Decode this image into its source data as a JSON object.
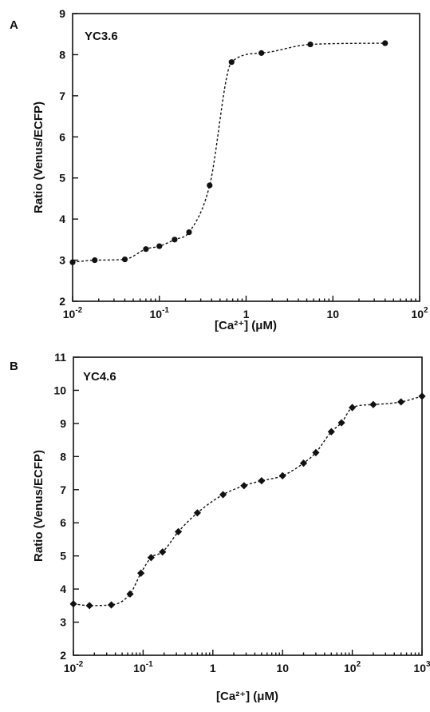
{
  "chart_data": [
    {
      "type": "line",
      "panel_label": "A",
      "title": "YC3.6",
      "xlabel": "[Ca²⁺] (μM)",
      "ylabel": "Ratio (Venus/ECFP)",
      "xscale": "log",
      "xlim": [
        0.01,
        100
      ],
      "ylim": [
        2,
        9
      ],
      "x_ticks": [
        {
          "value": 0.01,
          "base": "10",
          "exp": "-2"
        },
        {
          "value": 0.1,
          "base": "10",
          "exp": "-1"
        },
        {
          "value": 1,
          "base": "1",
          "exp": ""
        },
        {
          "value": 10,
          "base": "10",
          "exp": ""
        },
        {
          "value": 100,
          "base": "10",
          "exp": "2"
        }
      ],
      "y_ticks": [
        2,
        3,
        4,
        5,
        6,
        7,
        8,
        9
      ],
      "marker": "circle",
      "grid": false,
      "series": [
        {
          "x": [
            0.01,
            0.018,
            0.04,
            0.07,
            0.1,
            0.15,
            0.22,
            0.38,
            0.68,
            1.5,
            5.5,
            40
          ],
          "y": [
            2.95,
            3.0,
            3.02,
            3.27,
            3.34,
            3.5,
            3.68,
            4.82,
            7.82,
            8.04,
            8.25,
            8.28
          ]
        }
      ]
    },
    {
      "type": "line",
      "panel_label": "B",
      "title": "YC4.6",
      "xlabel": "[Ca²⁺] (μM)",
      "ylabel": "Ratio (Venus/ECFP)",
      "xscale": "log",
      "xlim": [
        0.01,
        1000
      ],
      "ylim": [
        2,
        11
      ],
      "x_ticks": [
        {
          "value": 0.01,
          "base": "10",
          "exp": "-2"
        },
        {
          "value": 0.1,
          "base": "10",
          "exp": "-1"
        },
        {
          "value": 1,
          "base": "1",
          "exp": ""
        },
        {
          "value": 10,
          "base": "10",
          "exp": ""
        },
        {
          "value": 100,
          "base": "10",
          "exp": "2"
        },
        {
          "value": 1000,
          "base": "10",
          "exp": "3"
        }
      ],
      "y_ticks": [
        2,
        3,
        4,
        5,
        6,
        7,
        8,
        9,
        10,
        11
      ],
      "marker": "diamond",
      "grid": false,
      "series": [
        {
          "x": [
            0.01,
            0.017,
            0.035,
            0.065,
            0.093,
            0.13,
            0.19,
            0.32,
            0.6,
            1.4,
            2.8,
            5,
            10,
            20,
            30,
            50,
            70,
            100,
            200,
            500,
            1000
          ],
          "y": [
            3.55,
            3.5,
            3.52,
            3.85,
            4.48,
            4.95,
            5.12,
            5.73,
            6.3,
            6.85,
            7.12,
            7.27,
            7.42,
            7.8,
            8.12,
            8.75,
            9.02,
            9.48,
            9.57,
            9.65,
            9.82
          ]
        }
      ]
    }
  ]
}
